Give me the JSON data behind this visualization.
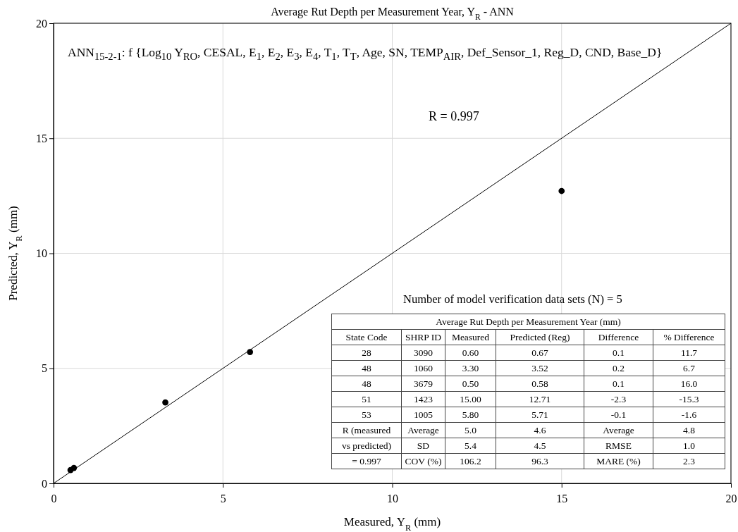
{
  "chart_data": {
    "type": "scatter",
    "title": "Average Rut Depth per Measurement  Year, Y$_{R}$ - ANN",
    "xlabel": "Measured, Y$_{R}$ (mm)",
    "ylabel": "Predicted, Y$_{R}$ (mm)",
    "xlim": [
      0,
      20
    ],
    "ylim": [
      0,
      20
    ],
    "xticks": [
      0,
      5,
      10,
      15,
      20
    ],
    "yticks": [
      0,
      5,
      10,
      15,
      20
    ],
    "grid": true,
    "series": [
      {
        "marker": "circle",
        "color": "#000000",
        "x": [
          0.6,
          3.3,
          0.5,
          15.0,
          5.8
        ],
        "values": [
          0.67,
          3.52,
          0.58,
          12.71,
          5.71
        ]
      },
      {
        "type": "line",
        "color": "#000000",
        "x": [
          0,
          20
        ],
        "values": [
          0,
          20
        ]
      }
    ],
    "annotations": [
      "ANN$_{15-2-1}$: f {Log$_{10}$ Y$_{RO}$, CESAL, E$_{1}$, E$_{2}$, E$_{3}$, E$_{4}$, T$_{1}$, T$_{T}$, Age, SN, TEMP$_{AIR}$, Def_Sensor_1, Reg_D, CND, Base_D}",
      "R = 0.997",
      "Number of model verification data sets (N) = 5",
      "Average Rut Depth per Measurement Year (mm)",
      "State Code",
      "SHRP ID",
      "Measured",
      "Predicted (Reg)",
      "Difference",
      "% Difference",
      "28",
      "3090",
      "0.60",
      "0.67",
      "0.1",
      "11.7",
      "48",
      "1060",
      "3.30",
      "3.52",
      "0.2",
      "6.7",
      "48",
      "3679",
      "0.50",
      "0.58",
      "0.1",
      "16.0",
      "51",
      "1423",
      "15.00",
      "12.71",
      "-2.3",
      "-15.3",
      "53",
      "1005",
      "5.80",
      "5.71",
      "-0.1",
      "-1.6",
      "R (measured",
      "Average",
      "5.0",
      "4.6",
      "Average",
      "4.8",
      "vs predicted)",
      "SD",
      "5.4",
      "4.5",
      "RMSE",
      "1.0",
      "= 0.997",
      "COV (%)",
      "106.2",
      "96.3",
      "MARE (%)",
      "2.3"
    ]
  }
}
